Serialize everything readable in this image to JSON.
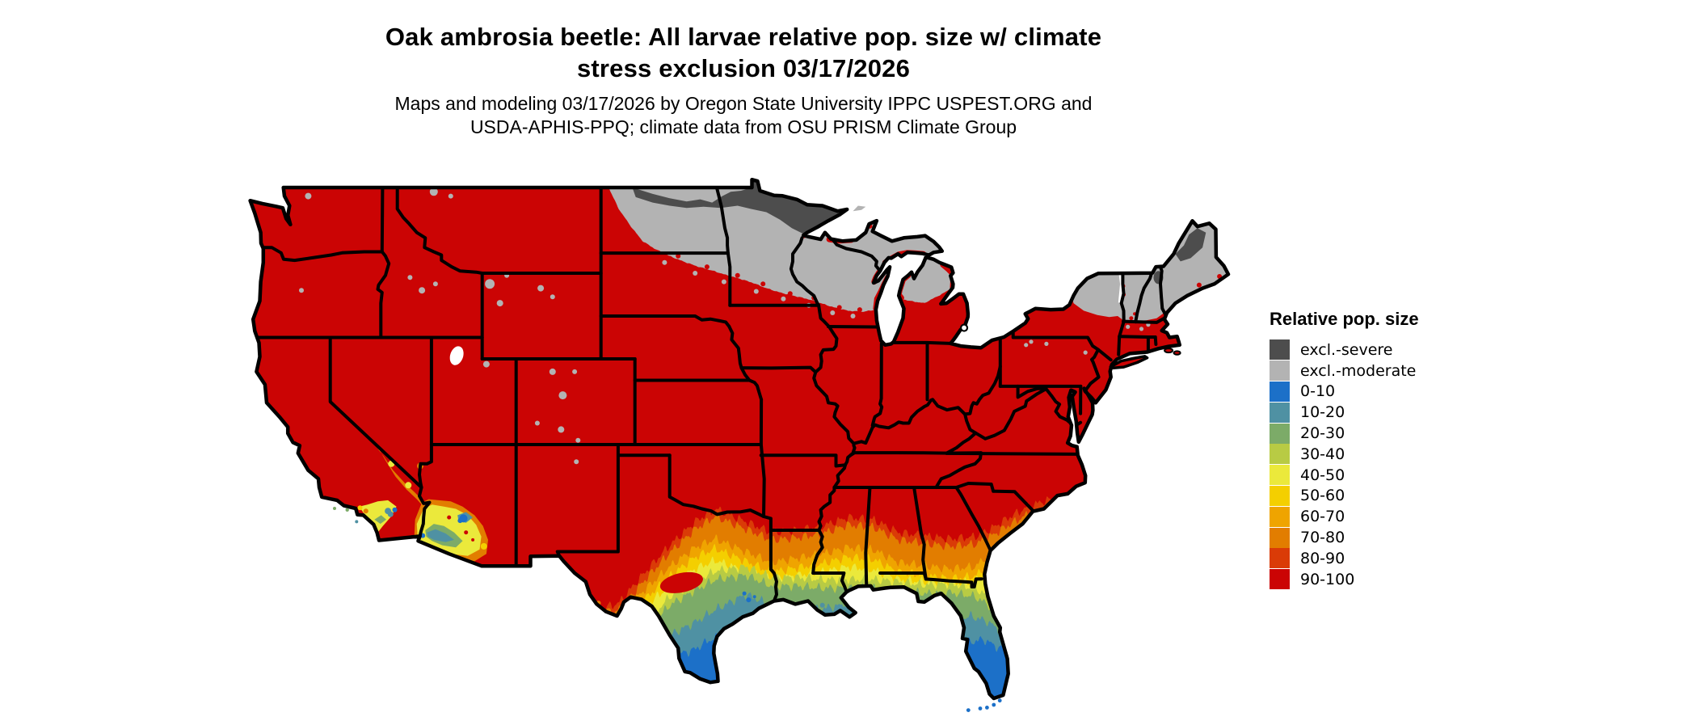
{
  "header": {
    "title_line1": "Oak ambrosia beetle: All larvae relative pop. size w/ climate",
    "title_line2": "stress exclusion 03/17/2026",
    "subtitle_line1": "Maps and modeling 03/17/2026 by Oregon State University IPPC USPEST.ORG and",
    "subtitle_line2": "USDA-APHIS-PPQ; climate data from OSU PRISM Climate Group"
  },
  "legend": {
    "title": "Relative pop. size",
    "items": [
      {
        "label": "excl.-severe",
        "color": "#4d4d4d"
      },
      {
        "label": "excl.-moderate",
        "color": "#b3b3b3"
      },
      {
        "label": "0-10",
        "color": "#1c70c8"
      },
      {
        "label": "10-20",
        "color": "#4f91a3"
      },
      {
        "label": "20-30",
        "color": "#7cab68"
      },
      {
        "label": "30-40",
        "color": "#b8cb44"
      },
      {
        "label": "40-50",
        "color": "#ebe93b"
      },
      {
        "label": "50-60",
        "color": "#f4cf00"
      },
      {
        "label": "60-70",
        "color": "#efa400"
      },
      {
        "label": "70-80",
        "color": "#e27d00"
      },
      {
        "label": "80-90",
        "color": "#da3b07"
      },
      {
        "label": "90-100",
        "color": "#cb0404"
      }
    ]
  },
  "map": {
    "land_default_class": "90-100",
    "water_color": "#ffffff",
    "border_color": "#000000"
  }
}
